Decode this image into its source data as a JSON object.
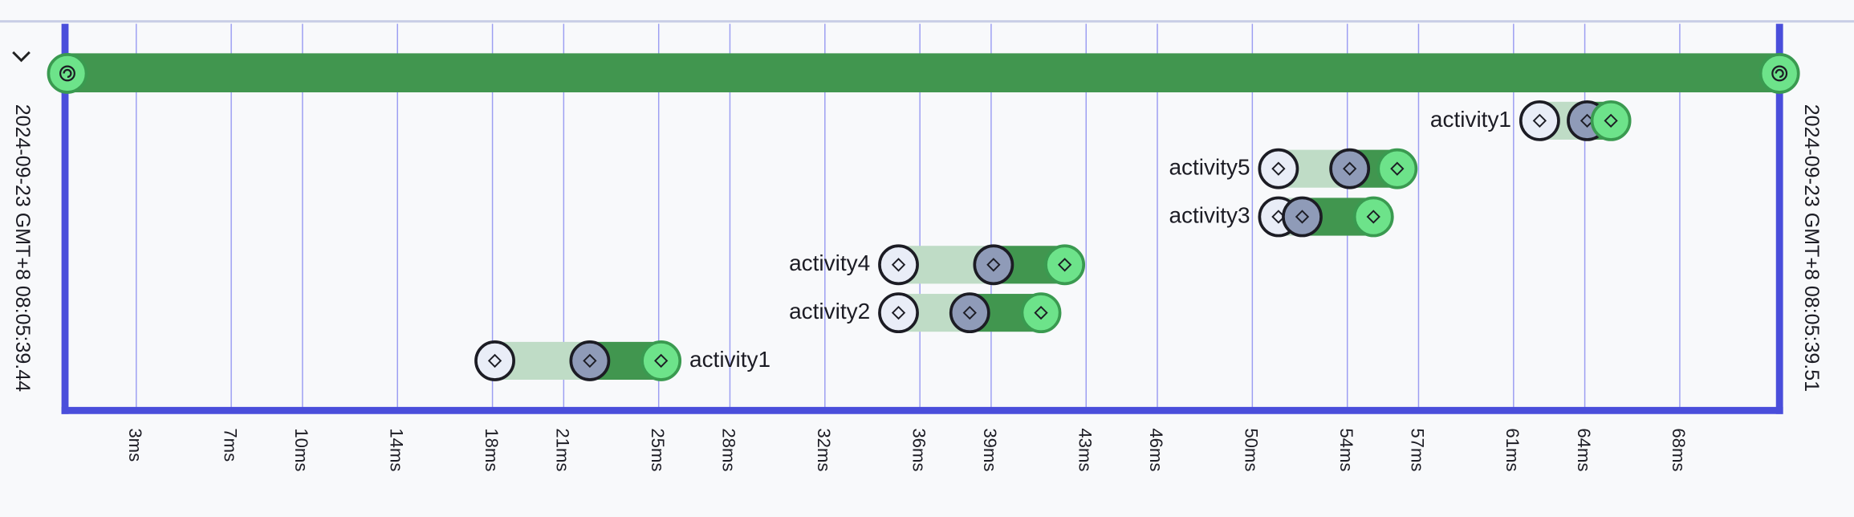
{
  "chart_data": {
    "type": "timeline",
    "start_label": "2024-09-23 GMT+8 08:05:39.44",
    "end_label": "2024-09-23 GMT+8 08:05:39.51",
    "xlim": [
      0,
      72.2
    ],
    "xticks": [
      {
        "value": 3,
        "label": "3ms"
      },
      {
        "value": 7,
        "label": "7ms"
      },
      {
        "value": 10,
        "label": "10ms"
      },
      {
        "value": 14,
        "label": "14ms"
      },
      {
        "value": 18,
        "label": "18ms"
      },
      {
        "value": 21,
        "label": "21ms"
      },
      {
        "value": 25,
        "label": "25ms"
      },
      {
        "value": 28,
        "label": "28ms"
      },
      {
        "value": 32,
        "label": "32ms"
      },
      {
        "value": 36,
        "label": "36ms"
      },
      {
        "value": 39,
        "label": "39ms"
      },
      {
        "value": 43,
        "label": "43ms"
      },
      {
        "value": 46,
        "label": "46ms"
      },
      {
        "value": 50,
        "label": "50ms"
      },
      {
        "value": 54,
        "label": "54ms"
      },
      {
        "value": 57,
        "label": "57ms"
      },
      {
        "value": 61,
        "label": "61ms"
      },
      {
        "value": 64,
        "label": "64ms"
      },
      {
        "value": 68,
        "label": "68ms"
      }
    ],
    "grid": true,
    "colors": {
      "axis": "#4a4edb",
      "grid": "#9c9ef2",
      "span": "#41964f",
      "pending": "#bfdcc6",
      "start": "#e9edf7",
      "mid": "#8f9bb8",
      "end": "#6de38a"
    },
    "activities": [
      {
        "name": "activity1",
        "label_side": "left",
        "start": 62.1,
        "mid": 64.1,
        "end": 65.1
      },
      {
        "name": "activity5",
        "label_side": "left",
        "start": 51.1,
        "mid": 54.1,
        "end": 56.1
      },
      {
        "name": "activity3",
        "label_side": "left",
        "start": 51.1,
        "mid": 52.1,
        "end": 55.1
      },
      {
        "name": "activity4",
        "label_side": "left",
        "start": 35.1,
        "mid": 39.1,
        "end": 42.1
      },
      {
        "name": "activity2",
        "label_side": "left",
        "start": 35.1,
        "mid": 38.1,
        "end": 41.1
      },
      {
        "name": "activity1",
        "label_side": "right",
        "start": 18.1,
        "mid": 22.1,
        "end": 25.1
      }
    ]
  }
}
